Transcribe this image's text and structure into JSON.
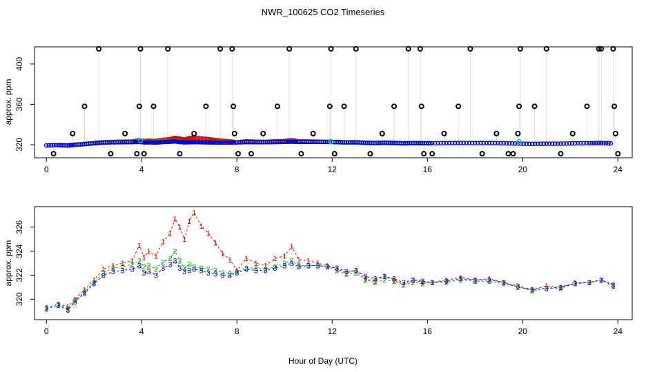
{
  "chart_data": {
    "title": "NWR_100625  CO2 Timeseries",
    "xlabel": "Hour of Day (UTC)",
    "colors": {
      "s1": "#dd0000",
      "s2": "#00b000",
      "s3": "#0000dd",
      "flag": "#000000",
      "cyan": "#00cccc",
      "line": "#bbbbbb"
    },
    "panels": [
      {
        "type": "scatter",
        "ylabel": "approx. ppm",
        "xlim": [
          -0.5,
          24.6
        ],
        "ylim": [
          307,
          417
        ],
        "xticks": [
          0,
          4,
          8,
          12,
          16,
          20,
          24
        ],
        "yticks": [
          320,
          360,
          400
        ],
        "flagged_points": {
          "x": [
            1.1,
            1.6,
            2.2,
            2.7,
            3.3,
            3.8,
            3.9,
            3.95,
            4.5,
            5.1,
            5.6,
            6.2,
            6.7,
            7.3,
            7.8,
            7.85,
            7.9,
            8.6,
            9.1,
            9.7,
            10.2,
            10.7,
            11.2,
            11.9,
            11.95,
            12.5,
            13.0,
            13.6,
            14.1,
            14.6,
            15.2,
            15.7,
            15.75,
            16.2,
            16.7,
            17.3,
            17.8,
            18.3,
            18.9,
            19.4,
            19.8,
            19.85,
            19.9,
            20.5,
            21.0,
            21.6,
            22.1,
            22.7,
            23.2,
            23.3,
            23.8,
            23.85,
            23.9
          ],
          "y": [
            331,
            358,
            415,
            311,
            331,
            311,
            358,
            415,
            358,
            415,
            311,
            331,
            358,
            415,
            415,
            358,
            331,
            311,
            331,
            358,
            415,
            311,
            331,
            358,
            415,
            358,
            415,
            311,
            331,
            358,
            415,
            415,
            358,
            311,
            331,
            358,
            415,
            311,
            331,
            311,
            331,
            358,
            415,
            358,
            415,
            311,
            331,
            358,
            415,
            415,
            415,
            358,
            331
          ]
        },
        "extra_flagged_points": {
          "x": [
            0.3,
            4.1,
            8.05,
            12.1,
            15.85,
            19.6,
            24.0
          ],
          "y": [
            311,
            311,
            311,
            311,
            311,
            311,
            311
          ]
        }
      },
      {
        "type": "scatter",
        "ylabel": "approx. ppm",
        "xlim": [
          -0.5,
          24.6
        ],
        "ylim": [
          318.3,
          327.7
        ],
        "xticks": [
          0,
          4,
          8,
          12,
          16,
          20,
          24
        ],
        "yticks": [
          320,
          322,
          324,
          326
        ],
        "point_labels": [
          "1",
          "2",
          "3"
        ]
      }
    ],
    "series": [
      {
        "name": "1",
        "x": [
          0,
          0.5,
          0.9,
          1.2,
          1.6,
          2.0,
          2.4,
          2.8,
          3.2,
          3.6,
          3.9,
          4.1,
          4.3,
          4.6,
          4.9,
          5.2,
          5.4,
          5.6,
          5.8,
          6.0,
          6.2,
          6.5,
          6.8,
          7.1,
          7.4,
          7.7,
          8.0,
          8.4,
          8.8,
          9.2,
          9.6,
          10.0,
          10.3,
          10.6,
          11.0,
          11.4,
          11.8,
          12.2,
          12.6,
          13.0,
          13.4,
          13.8,
          14.2,
          14.6,
          15.0,
          15.4,
          15.8,
          16.2,
          16.8,
          17.4,
          18.0,
          18.6,
          19.2,
          19.8,
          20.4,
          21.0,
          21.6,
          22.2,
          22.8,
          23.3,
          23.8
        ],
        "values": [
          319.3,
          319.6,
          319.4,
          320.0,
          320.8,
          321.6,
          322.5,
          322.8,
          323.0,
          323.2,
          324.5,
          323.5,
          324.0,
          323.6,
          324.8,
          325.5,
          326.7,
          326.0,
          325.0,
          326.5,
          327.2,
          326.1,
          325.5,
          324.7,
          323.8,
          323.3,
          322.4,
          323.4,
          323.0,
          322.8,
          323.4,
          323.6,
          324.4,
          323.3,
          323.2,
          323.0,
          322.8,
          322.5,
          322.2,
          322.4,
          321.7,
          321.5,
          321.9,
          321.6,
          321.2,
          321.6,
          321.4,
          321.4,
          321.6,
          321.8,
          321.6,
          321.7,
          321.4,
          321.0,
          320.8,
          321.1,
          321.0,
          321.4,
          321.4,
          321.6,
          321.1
        ]
      },
      {
        "name": "2",
        "x": [
          0,
          0.5,
          0.9,
          1.2,
          1.6,
          2.0,
          2.4,
          2.8,
          3.2,
          3.6,
          3.9,
          4.1,
          4.3,
          4.6,
          4.9,
          5.2,
          5.4,
          5.6,
          5.8,
          6.0,
          6.2,
          6.5,
          6.8,
          7.1,
          7.4,
          7.7,
          8.0,
          8.4,
          8.8,
          9.2,
          9.6,
          10.0,
          10.3,
          10.6,
          11.0,
          11.4,
          11.8,
          12.2,
          12.6,
          13.0,
          13.4,
          13.8,
          14.2,
          14.6,
          15.0,
          15.4,
          15.8,
          16.2,
          16.8,
          17.4,
          18.0,
          18.6,
          19.2,
          19.8,
          20.4,
          21.0,
          21.6,
          22.2,
          22.8,
          23.3,
          23.8
        ],
        "values": [
          319.3,
          319.6,
          319.2,
          319.9,
          320.6,
          321.4,
          322.2,
          322.6,
          322.7,
          322.9,
          323.2,
          322.7,
          322.8,
          322.5,
          323.1,
          323.4,
          324.0,
          323.2,
          322.6,
          322.9,
          322.7,
          322.6,
          322.5,
          322.4,
          322.2,
          322.1,
          322.3,
          322.6,
          322.6,
          322.5,
          322.7,
          323.0,
          323.2,
          322.8,
          322.8,
          322.8,
          322.7,
          322.4,
          322.1,
          322.2,
          321.6,
          321.4,
          321.6,
          321.5,
          321.2,
          321.4,
          321.3,
          321.4,
          321.4,
          321.6,
          321.5,
          321.5,
          321.3,
          321.0,
          320.7,
          320.9,
          320.9,
          321.3,
          321.4,
          321.6,
          321.2
        ]
      },
      {
        "name": "3",
        "x": [
          0,
          0.5,
          0.9,
          1.2,
          1.6,
          2.0,
          2.4,
          2.8,
          3.2,
          3.6,
          3.9,
          4.1,
          4.3,
          4.6,
          4.9,
          5.2,
          5.4,
          5.6,
          5.8,
          6.0,
          6.2,
          6.5,
          6.8,
          7.1,
          7.4,
          7.7,
          8.0,
          8.4,
          8.8,
          9.2,
          9.6,
          10.0,
          10.3,
          10.6,
          11.0,
          11.4,
          11.8,
          12.2,
          12.6,
          13.0,
          13.4,
          13.8,
          14.2,
          14.6,
          15.0,
          15.4,
          15.8,
          16.2,
          16.8,
          17.4,
          18.0,
          18.6,
          19.2,
          19.8,
          20.4,
          21.0,
          21.6,
          22.2,
          22.8,
          23.3,
          23.8
        ],
        "values": [
          319.2,
          319.5,
          319.1,
          319.8,
          320.5,
          321.3,
          322.0,
          322.3,
          322.4,
          322.5,
          322.8,
          322.2,
          322.3,
          322.0,
          322.6,
          322.9,
          323.2,
          322.6,
          322.3,
          322.4,
          322.5,
          322.4,
          322.2,
          322.1,
          322.0,
          322.0,
          322.2,
          322.5,
          322.4,
          322.4,
          322.6,
          322.8,
          323.0,
          322.7,
          322.8,
          322.8,
          322.7,
          322.6,
          322.3,
          322.4,
          321.9,
          321.7,
          321.9,
          321.7,
          321.4,
          321.6,
          321.5,
          321.4,
          321.5,
          321.7,
          321.6,
          321.6,
          321.4,
          321.1,
          320.8,
          320.9,
          321.0,
          321.3,
          321.4,
          321.6,
          321.2
        ]
      }
    ]
  }
}
